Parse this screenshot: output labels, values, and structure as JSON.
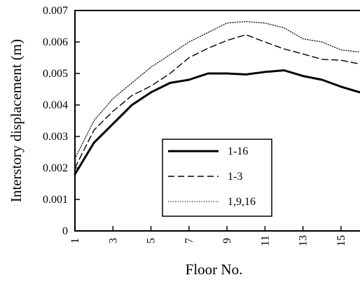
{
  "chart_data": {
    "type": "line",
    "title": "",
    "xlabel": "Floor No.",
    "ylabel": "Interstory displacement   (m)",
    "xlim": [
      1,
      16
    ],
    "ylim": [
      0,
      0.007
    ],
    "x_ticks": [
      1,
      3,
      5,
      7,
      9,
      11,
      13,
      15
    ],
    "x_tick_labels": [
      "1",
      "3",
      "5",
      "7",
      "9",
      "11",
      "13",
      "15"
    ],
    "y_ticks": [
      0,
      0.001,
      0.002,
      0.003,
      0.004,
      0.005,
      0.006,
      0.007
    ],
    "y_tick_labels": [
      "0",
      "0.001",
      "0.002",
      "0.003",
      "0.004",
      "0.005",
      "0.006",
      "0.007"
    ],
    "legend_position": "lower-center",
    "grid": false,
    "x": [
      1,
      2,
      3,
      4,
      5,
      6,
      7,
      8,
      9,
      10,
      11,
      12,
      13,
      14,
      15,
      16
    ],
    "series": [
      {
        "name": "1-16",
        "style": "solid",
        "color": "#000000",
        "values": [
          0.0018,
          0.0028,
          0.0034,
          0.004,
          0.0044,
          0.0047,
          0.0048,
          0.005,
          0.005,
          0.00497,
          0.00505,
          0.0051,
          0.00492,
          0.0048,
          0.00458,
          0.0044
        ]
      },
      {
        "name": "1-3",
        "style": "dashed",
        "color": "#000000",
        "values": [
          0.002,
          0.0032,
          0.0038,
          0.0043,
          0.0046,
          0.005,
          0.0055,
          0.0058,
          0.00605,
          0.00623,
          0.006,
          0.00578,
          0.00562,
          0.00545,
          0.00542,
          0.0053
        ]
      },
      {
        "name": "1,9,16",
        "style": "dotted",
        "color": "#000000",
        "values": [
          0.0023,
          0.0035,
          0.0042,
          0.0047,
          0.0052,
          0.0056,
          0.006,
          0.0063,
          0.0066,
          0.00665,
          0.0066,
          0.00645,
          0.0061,
          0.006,
          0.00575,
          0.00568
        ]
      }
    ]
  }
}
